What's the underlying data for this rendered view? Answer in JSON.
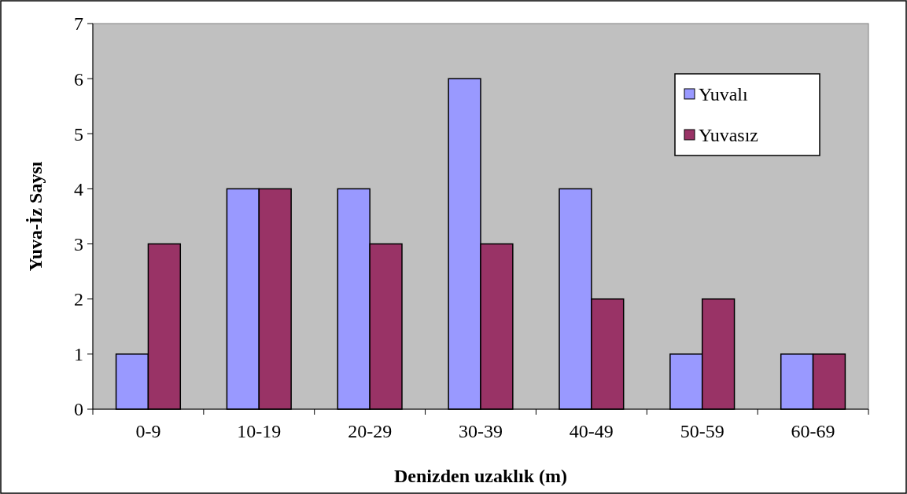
{
  "chart_data": {
    "type": "bar",
    "xlabel": "Denizden uzaklık (m)",
    "ylabel": "Yuva-İz Saysı",
    "categories": [
      "0-9",
      "10-19",
      "20-29",
      "30-39",
      "40-49",
      "50-59",
      "60-69"
    ],
    "series": [
      {
        "name": "Yuvalı",
        "color": "#9999ff",
        "values": [
          1,
          4,
          4,
          6,
          4,
          1,
          1
        ]
      },
      {
        "name": "Yuvasız",
        "color": "#993366",
        "values": [
          3,
          4,
          3,
          3,
          2,
          2,
          1
        ]
      }
    ],
    "ylim": [
      0,
      7
    ],
    "yticks": [
      0,
      1,
      2,
      3,
      4,
      5,
      6,
      7
    ],
    "grid": false,
    "legend": "top right"
  }
}
